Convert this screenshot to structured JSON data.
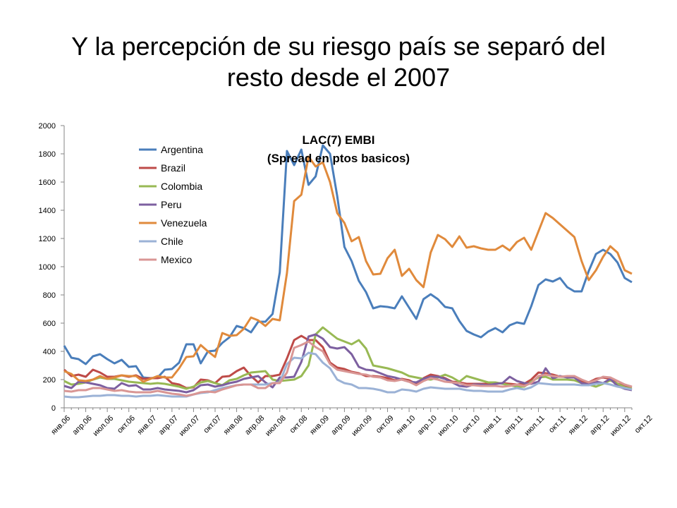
{
  "slide": {
    "title_line1": "Y la percepción de su  riesgo país se separó del",
    "title_line2": "resto desde el 2007"
  },
  "chart_data": {
    "type": "line",
    "title": "LAC(7) EMBI",
    "subtitle": "(Spread en ptos basicos)",
    "xlabel": "",
    "ylabel": "",
    "ylim": [
      0,
      2000
    ],
    "yticks": [
      0,
      200,
      400,
      600,
      800,
      1000,
      1200,
      1400,
      1600,
      1800,
      2000
    ],
    "grid": false,
    "legend_position": "top-left",
    "x_labels": [
      "янв.06",
      "апр.06",
      "июл.06",
      "окт.06",
      "янв.07",
      "апр.07",
      "июл.07",
      "окт.07",
      "янв.08",
      "апр.08",
      "июл.08",
      "окт.08",
      "янв.09",
      "апр.09",
      "июл.09",
      "окт.09",
      "янв.10",
      "апр.10",
      "июл.10",
      "окт.10",
      "янв.11",
      "апр.11",
      "июл.11",
      "окт.11",
      "янв.12",
      "апр.12",
      "июл.12",
      "окт.12"
    ],
    "series": [
      {
        "name": "Argentina",
        "color": "#4a7ebb",
        "values": [
          440,
          355,
          345,
          310,
          365,
          380,
          345,
          315,
          340,
          290,
          295,
          215,
          210,
          215,
          270,
          275,
          320,
          450,
          450,
          315,
          400,
          405,
          460,
          500,
          580,
          565,
          535,
          610,
          610,
          665,
          960,
          1820,
          1720,
          1830,
          1580,
          1640,
          1860,
          1800,
          1500,
          1140,
          1040,
          900,
          820,
          705,
          720,
          715,
          705,
          790,
          710,
          630,
          770,
          805,
          770,
          715,
          705,
          615,
          545,
          520,
          500,
          540,
          565,
          535,
          585,
          605,
          595,
          720,
          870,
          910,
          895,
          920,
          855,
          825,
          825,
          970,
          1090,
          1120,
          1090,
          1030,
          920,
          890
        ]
      },
      {
        "name": "Brazil",
        "color": "#be4b48",
        "values": [
          270,
          225,
          235,
          220,
          270,
          250,
          220,
          220,
          230,
          220,
          230,
          205,
          210,
          210,
          220,
          175,
          165,
          140,
          145,
          200,
          195,
          175,
          220,
          225,
          260,
          285,
          225,
          180,
          225,
          225,
          235,
          350,
          480,
          510,
          480,
          480,
          430,
          320,
          285,
          275,
          255,
          245,
          225,
          225,
          220,
          210,
          195,
          205,
          195,
          170,
          210,
          235,
          225,
          210,
          185,
          180,
          170,
          170,
          170,
          170,
          170,
          175,
          170,
          165,
          170,
          200,
          250,
          245,
          235,
          220,
          220,
          215,
          190,
          180,
          205,
          215,
          205,
          170,
          155,
          145
        ]
      },
      {
        "name": "Colombia",
        "color": "#98b954",
        "values": [
          190,
          165,
          170,
          180,
          200,
          215,
          205,
          205,
          195,
          185,
          180,
          175,
          170,
          175,
          170,
          160,
          150,
          135,
          150,
          180,
          190,
          175,
          160,
          195,
          205,
          230,
          250,
          255,
          260,
          200,
          190,
          195,
          200,
          225,
          300,
          520,
          570,
          530,
          490,
          470,
          450,
          480,
          420,
          300,
          290,
          280,
          265,
          250,
          225,
          215,
          205,
          200,
          215,
          235,
          215,
          185,
          225,
          210,
          195,
          180,
          180,
          170,
          160,
          150,
          150,
          185,
          215,
          220,
          200,
          200,
          200,
          195,
          175,
          165,
          150,
          170,
          195,
          170,
          145,
          135
        ]
      },
      {
        "name": "Peru",
        "color": "#7d60a0",
        "values": [
          155,
          140,
          185,
          180,
          170,
          160,
          140,
          135,
          175,
          155,
          160,
          130,
          130,
          140,
          130,
          125,
          120,
          110,
          125,
          160,
          165,
          150,
          160,
          175,
          185,
          205,
          215,
          225,
          180,
          145,
          215,
          215,
          220,
          325,
          505,
          520,
          490,
          430,
          420,
          430,
          380,
          290,
          270,
          265,
          245,
          225,
          215,
          200,
          185,
          180,
          205,
          220,
          220,
          205,
          180,
          155,
          150,
          165,
          165,
          160,
          170,
          175,
          220,
          190,
          175,
          170,
          185,
          280,
          210,
          225,
          215,
          215,
          175,
          165,
          185,
          175,
          205,
          155,
          135,
          125
        ]
      },
      {
        "name": "Venezuela",
        "color": "#e08a3c",
        "values": [
          260,
          240,
          195,
          190,
          200,
          225,
          205,
          215,
          230,
          225,
          225,
          185,
          205,
          225,
          215,
          215,
          280,
          360,
          365,
          445,
          400,
          360,
          530,
          510,
          515,
          560,
          640,
          620,
          580,
          630,
          620,
          955,
          1465,
          1510,
          1780,
          1710,
          1740,
          1600,
          1380,
          1310,
          1180,
          1210,
          1040,
          945,
          950,
          1060,
          1120,
          935,
          985,
          905,
          855,
          1100,
          1225,
          1195,
          1140,
          1215,
          1135,
          1145,
          1130,
          1120,
          1120,
          1150,
          1115,
          1175,
          1205,
          1120,
          1250,
          1380,
          1345,
          1300,
          1255,
          1210,
          1040,
          905,
          975,
          1070,
          1145,
          1100,
          975,
          950
        ]
      },
      {
        "name": "Chile",
        "color": "#9bb2d6",
        "values": [
          80,
          75,
          75,
          80,
          85,
          85,
          90,
          90,
          85,
          85,
          80,
          85,
          85,
          90,
          85,
          80,
          80,
          80,
          95,
          105,
          110,
          125,
          140,
          150,
          160,
          165,
          165,
          165,
          165,
          175,
          180,
          310,
          355,
          350,
          390,
          380,
          320,
          280,
          200,
          175,
          165,
          140,
          140,
          135,
          125,
          110,
          110,
          130,
          125,
          115,
          135,
          145,
          140,
          135,
          135,
          135,
          125,
          120,
          120,
          115,
          115,
          115,
          130,
          140,
          130,
          145,
          175,
          170,
          165,
          165,
          165,
          165,
          160,
          160,
          170,
          175,
          165,
          150,
          140,
          130
        ]
      },
      {
        "name": "Mexico",
        "color": "#d99694",
        "values": [
          120,
          115,
          125,
          125,
          140,
          140,
          130,
          120,
          125,
          115,
          110,
          110,
          110,
          120,
          110,
          100,
          95,
          85,
          95,
          110,
          115,
          110,
          130,
          145,
          160,
          165,
          165,
          140,
          140,
          175,
          175,
          250,
          425,
          445,
          470,
          430,
          400,
          310,
          270,
          260,
          250,
          240,
          235,
          220,
          215,
          195,
          190,
          200,
          185,
          160,
          190,
          210,
          200,
          185,
          180,
          175,
          160,
          160,
          155,
          155,
          155,
          150,
          155,
          165,
          155,
          175,
          225,
          235,
          225,
          220,
          225,
          225,
          200,
          180,
          195,
          220,
          215,
          190,
          165,
          150
        ]
      }
    ]
  }
}
